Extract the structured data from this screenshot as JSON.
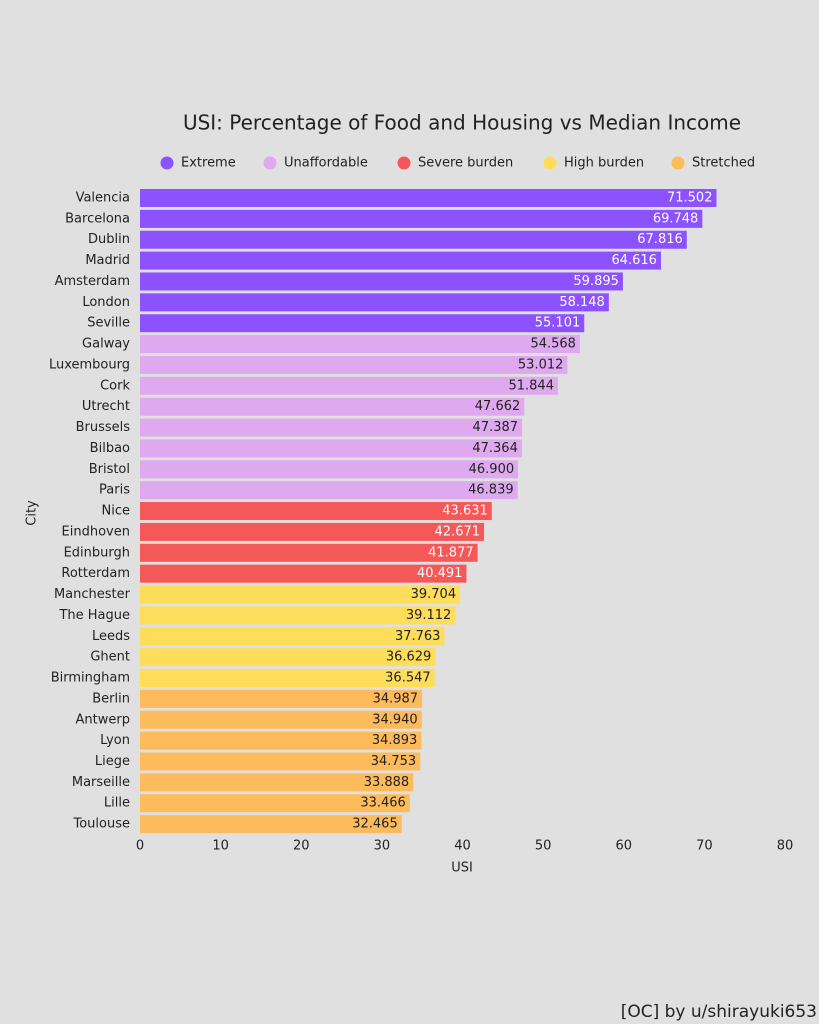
{
  "chart_data": {
    "type": "bar",
    "orientation": "horizontal",
    "title": "USI: Percentage of Food and Housing vs Median Income",
    "x_label": "USI",
    "y_label": "City",
    "credit": "[OC] by u/shirayuki653",
    "categories": [
      "Valencia",
      "Barcelona",
      "Dublin",
      "Madrid",
      "Amsterdam",
      "London",
      "Seville",
      "Galway",
      "Luxembourg",
      "Cork",
      "Utrecht",
      "Brussels",
      "Bilbao",
      "Bristol",
      "Paris",
      "Nice",
      "Eindhoven",
      "Edinburgh",
      "Rotterdam",
      "Manchester",
      "The Hague",
      "Leeds",
      "Ghent",
      "Birmingham",
      "Berlin",
      "Antwerp",
      "Lyon",
      "Liege",
      "Marseille",
      "Lille",
      "Toulouse"
    ],
    "series": [
      {
        "name": "Extreme",
        "color": "#8c52ff",
        "label_color": "#ffffff",
        "values": [
          71.502,
          69.748,
          67.816,
          64.616,
          59.895,
          58.148,
          55.101,
          null,
          null,
          null,
          null,
          null,
          null,
          null,
          null,
          null,
          null,
          null,
          null,
          null,
          null,
          null,
          null,
          null,
          null,
          null,
          null,
          null,
          null,
          null,
          null
        ],
        "value_labels": [
          "71.502",
          "69.748",
          "67.816",
          "64.616",
          "59.895",
          "58.148",
          "55.101",
          null,
          null,
          null,
          null,
          null,
          null,
          null,
          null,
          null,
          null,
          null,
          null,
          null,
          null,
          null,
          null,
          null,
          null,
          null,
          null,
          null,
          null,
          null,
          null
        ]
      },
      {
        "name": "Unaffordable",
        "color": "#dfa9ef",
        "label_color": "#222222",
        "values": [
          null,
          null,
          null,
          null,
          null,
          null,
          null,
          54.568,
          53.012,
          51.844,
          47.662,
          47.387,
          47.364,
          46.9,
          46.839,
          null,
          null,
          null,
          null,
          null,
          null,
          null,
          null,
          null,
          null,
          null,
          null,
          null,
          null,
          null,
          null
        ],
        "value_labels": [
          null,
          null,
          null,
          null,
          null,
          null,
          null,
          "54.568",
          "53.012",
          "51.844",
          "47.662",
          "47.387",
          "47.364",
          "46.900",
          "46.839",
          null,
          null,
          null,
          null,
          null,
          null,
          null,
          null,
          null,
          null,
          null,
          null,
          null,
          null,
          null,
          null
        ]
      },
      {
        "name": "Severe burden",
        "color": "#f55858",
        "label_color": "#ffffff",
        "values": [
          null,
          null,
          null,
          null,
          null,
          null,
          null,
          null,
          null,
          null,
          null,
          null,
          null,
          null,
          null,
          43.631,
          42.671,
          41.877,
          40.491,
          null,
          null,
          null,
          null,
          null,
          null,
          null,
          null,
          null,
          null,
          null,
          null
        ],
        "value_labels": [
          null,
          null,
          null,
          null,
          null,
          null,
          null,
          null,
          null,
          null,
          null,
          null,
          null,
          null,
          null,
          "43.631",
          "42.671",
          "41.877",
          "40.491",
          null,
          null,
          null,
          null,
          null,
          null,
          null,
          null,
          null,
          null,
          null,
          null
        ]
      },
      {
        "name": "High burden",
        "color": "#fedd5a",
        "label_color": "#222222",
        "values": [
          null,
          null,
          null,
          null,
          null,
          null,
          null,
          null,
          null,
          null,
          null,
          null,
          null,
          null,
          null,
          null,
          null,
          null,
          null,
          39.704,
          39.112,
          37.763,
          36.629,
          36.547,
          null,
          null,
          null,
          null,
          null,
          null,
          null
        ],
        "value_labels": [
          null,
          null,
          null,
          null,
          null,
          null,
          null,
          null,
          null,
          null,
          null,
          null,
          null,
          null,
          null,
          null,
          null,
          null,
          null,
          "39.704",
          "39.112",
          "37.763",
          "36.629",
          "36.547",
          null,
          null,
          null,
          null,
          null,
          null,
          null
        ]
      },
      {
        "name": "Stretched",
        "color": "#fdbb5c",
        "label_color": "#222222",
        "values": [
          null,
          null,
          null,
          null,
          null,
          null,
          null,
          null,
          null,
          null,
          null,
          null,
          null,
          null,
          null,
          null,
          null,
          null,
          null,
          null,
          null,
          null,
          null,
          null,
          34.987,
          34.94,
          34.893,
          34.753,
          33.888,
          33.466,
          32.465
        ],
        "value_labels": [
          null,
          null,
          null,
          null,
          null,
          null,
          null,
          null,
          null,
          null,
          null,
          null,
          null,
          null,
          null,
          null,
          null,
          null,
          null,
          null,
          null,
          null,
          null,
          null,
          "34.987",
          "34.940",
          "34.893",
          "34.753",
          "33.888",
          "33.466",
          "32.465"
        ]
      }
    ],
    "xlim": [
      0,
      80
    ],
    "xticks": [
      0,
      10,
      20,
      30,
      40,
      50,
      60,
      70,
      80
    ],
    "grid": false,
    "legend_position": "top"
  }
}
